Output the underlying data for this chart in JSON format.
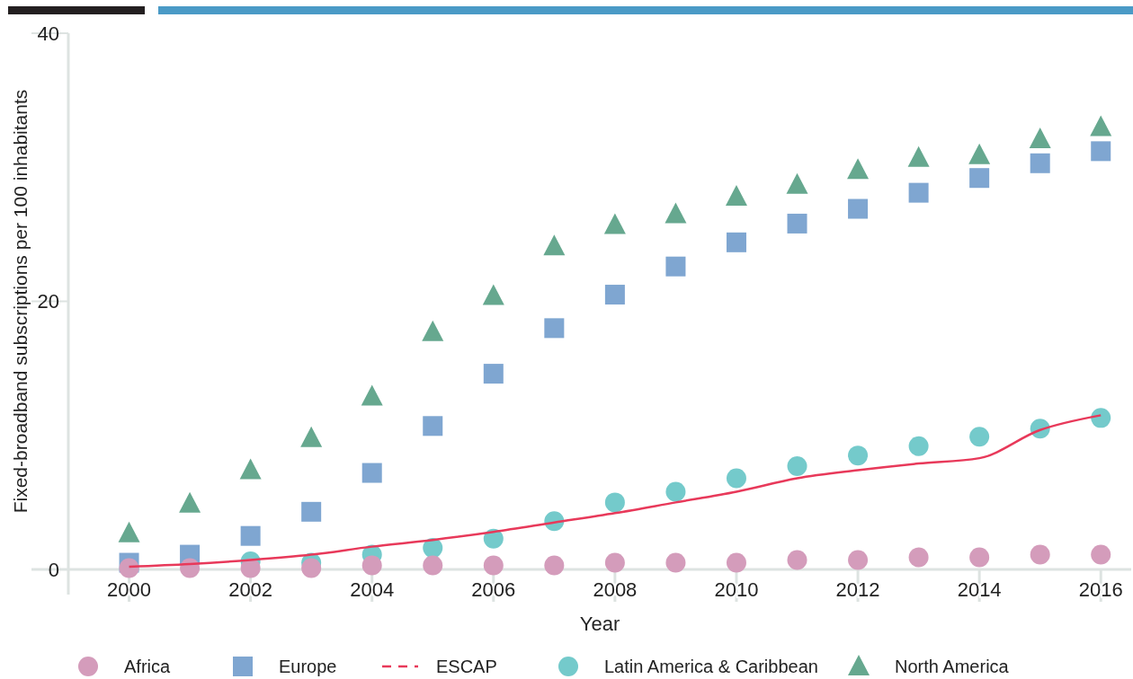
{
  "chart_data": {
    "type": "scatter",
    "xlabel": "Year",
    "ylabel": "Fixed-broadband subscriptions per 100 inhabitants",
    "x": [
      2000,
      2001,
      2002,
      2003,
      2004,
      2005,
      2006,
      2007,
      2008,
      2009,
      2010,
      2011,
      2012,
      2013,
      2014,
      2015,
      2016
    ],
    "xlim": [
      1999,
      2016.5
    ],
    "xticks": [
      2000,
      2002,
      2004,
      2006,
      2008,
      2010,
      2012,
      2014,
      2016
    ],
    "ylim": [
      0,
      40
    ],
    "yticks": [
      0,
      20,
      40
    ],
    "grid": false,
    "legend": "bottom",
    "series": [
      {
        "name": "Africa",
        "marker": "circle",
        "color": "#d49cbb",
        "values": [
          0.1,
          0.1,
          0.1,
          0.1,
          0.3,
          0.3,
          0.3,
          0.3,
          0.5,
          0.5,
          0.5,
          0.7,
          0.7,
          0.9,
          0.9,
          1.1,
          1.1
        ]
      },
      {
        "name": "Europe",
        "marker": "square",
        "color": "#7fa6d1",
        "values": [
          0.5,
          1.1,
          2.5,
          4.3,
          7.2,
          10.7,
          14.6,
          18.0,
          20.5,
          22.6,
          24.4,
          25.8,
          26.9,
          28.1,
          29.2,
          30.3,
          31.2
        ]
      },
      {
        "name": "ESCAP",
        "type": "line",
        "marker": "none",
        "line_style": "solid",
        "color": "#e8395a",
        "values": [
          0.2,
          0.4,
          0.7,
          1.1,
          1.7,
          2.2,
          2.8,
          3.5,
          4.2,
          5.0,
          5.8,
          6.8,
          7.4,
          7.9,
          8.3,
          10.4,
          11.5
        ]
      },
      {
        "name": "Latin America & Caribbean",
        "marker": "circle",
        "color": "#74cacb",
        "values": [
          null,
          null,
          0.6,
          0.5,
          1.1,
          1.6,
          2.3,
          3.6,
          5.0,
          5.8,
          6.8,
          7.7,
          8.5,
          9.2,
          9.9,
          10.5,
          11.3
        ]
      },
      {
        "name": "North America",
        "marker": "triangle",
        "color": "#66a88f",
        "values": [
          2.7,
          4.9,
          7.4,
          9.8,
          12.9,
          17.7,
          20.4,
          24.1,
          25.7,
          26.5,
          27.8,
          28.7,
          29.8,
          30.7,
          30.9,
          32.1,
          33.0
        ]
      }
    ]
  }
}
